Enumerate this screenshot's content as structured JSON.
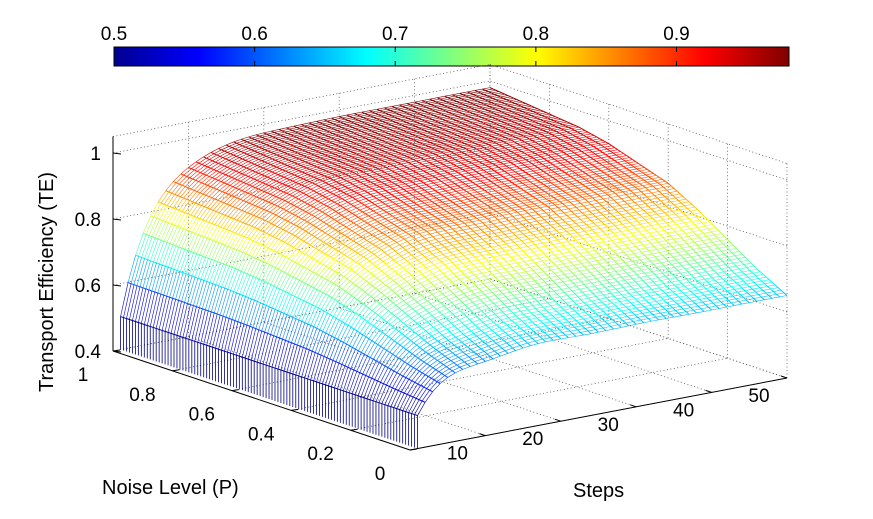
{
  "chart_data": {
    "type": "surface",
    "title": "",
    "xlabel": "Steps",
    "ylabel": "Noise Level (P)",
    "zlabel": "Transport Efficiency (TE)",
    "xlim": [
      0,
      50
    ],
    "ylim": [
      0,
      1
    ],
    "zlim": [
      0.4,
      1.05
    ],
    "xticks": [
      10,
      20,
      30,
      40,
      50
    ],
    "yticks": [
      0,
      0.2,
      0.4,
      0.6,
      0.8,
      1
    ],
    "zticks": [
      0.4,
      0.6,
      0.8,
      1
    ],
    "colorbar": {
      "range": [
        0.5,
        0.98
      ],
      "ticks": [
        0.5,
        0.6,
        0.7,
        0.8,
        0.9
      ],
      "colormap": "jet",
      "placement": "top"
    },
    "grid": true,
    "steps": [
      1,
      50
    ],
    "noise_levels": [
      0,
      0.1,
      0.2,
      0.3,
      0.4,
      0.5,
      0.6,
      0.7,
      0.8,
      0.9,
      1
    ],
    "te_at_step_1": [
      0.5,
      0.5,
      0.5,
      0.5,
      0.5,
      0.5,
      0.5,
      0.5,
      0.5,
      0.5,
      0.5
    ],
    "te_at_step_50": [
      0.65,
      0.7,
      0.76,
      0.82,
      0.87,
      0.9,
      0.93,
      0.95,
      0.96,
      0.97,
      0.98
    ]
  }
}
